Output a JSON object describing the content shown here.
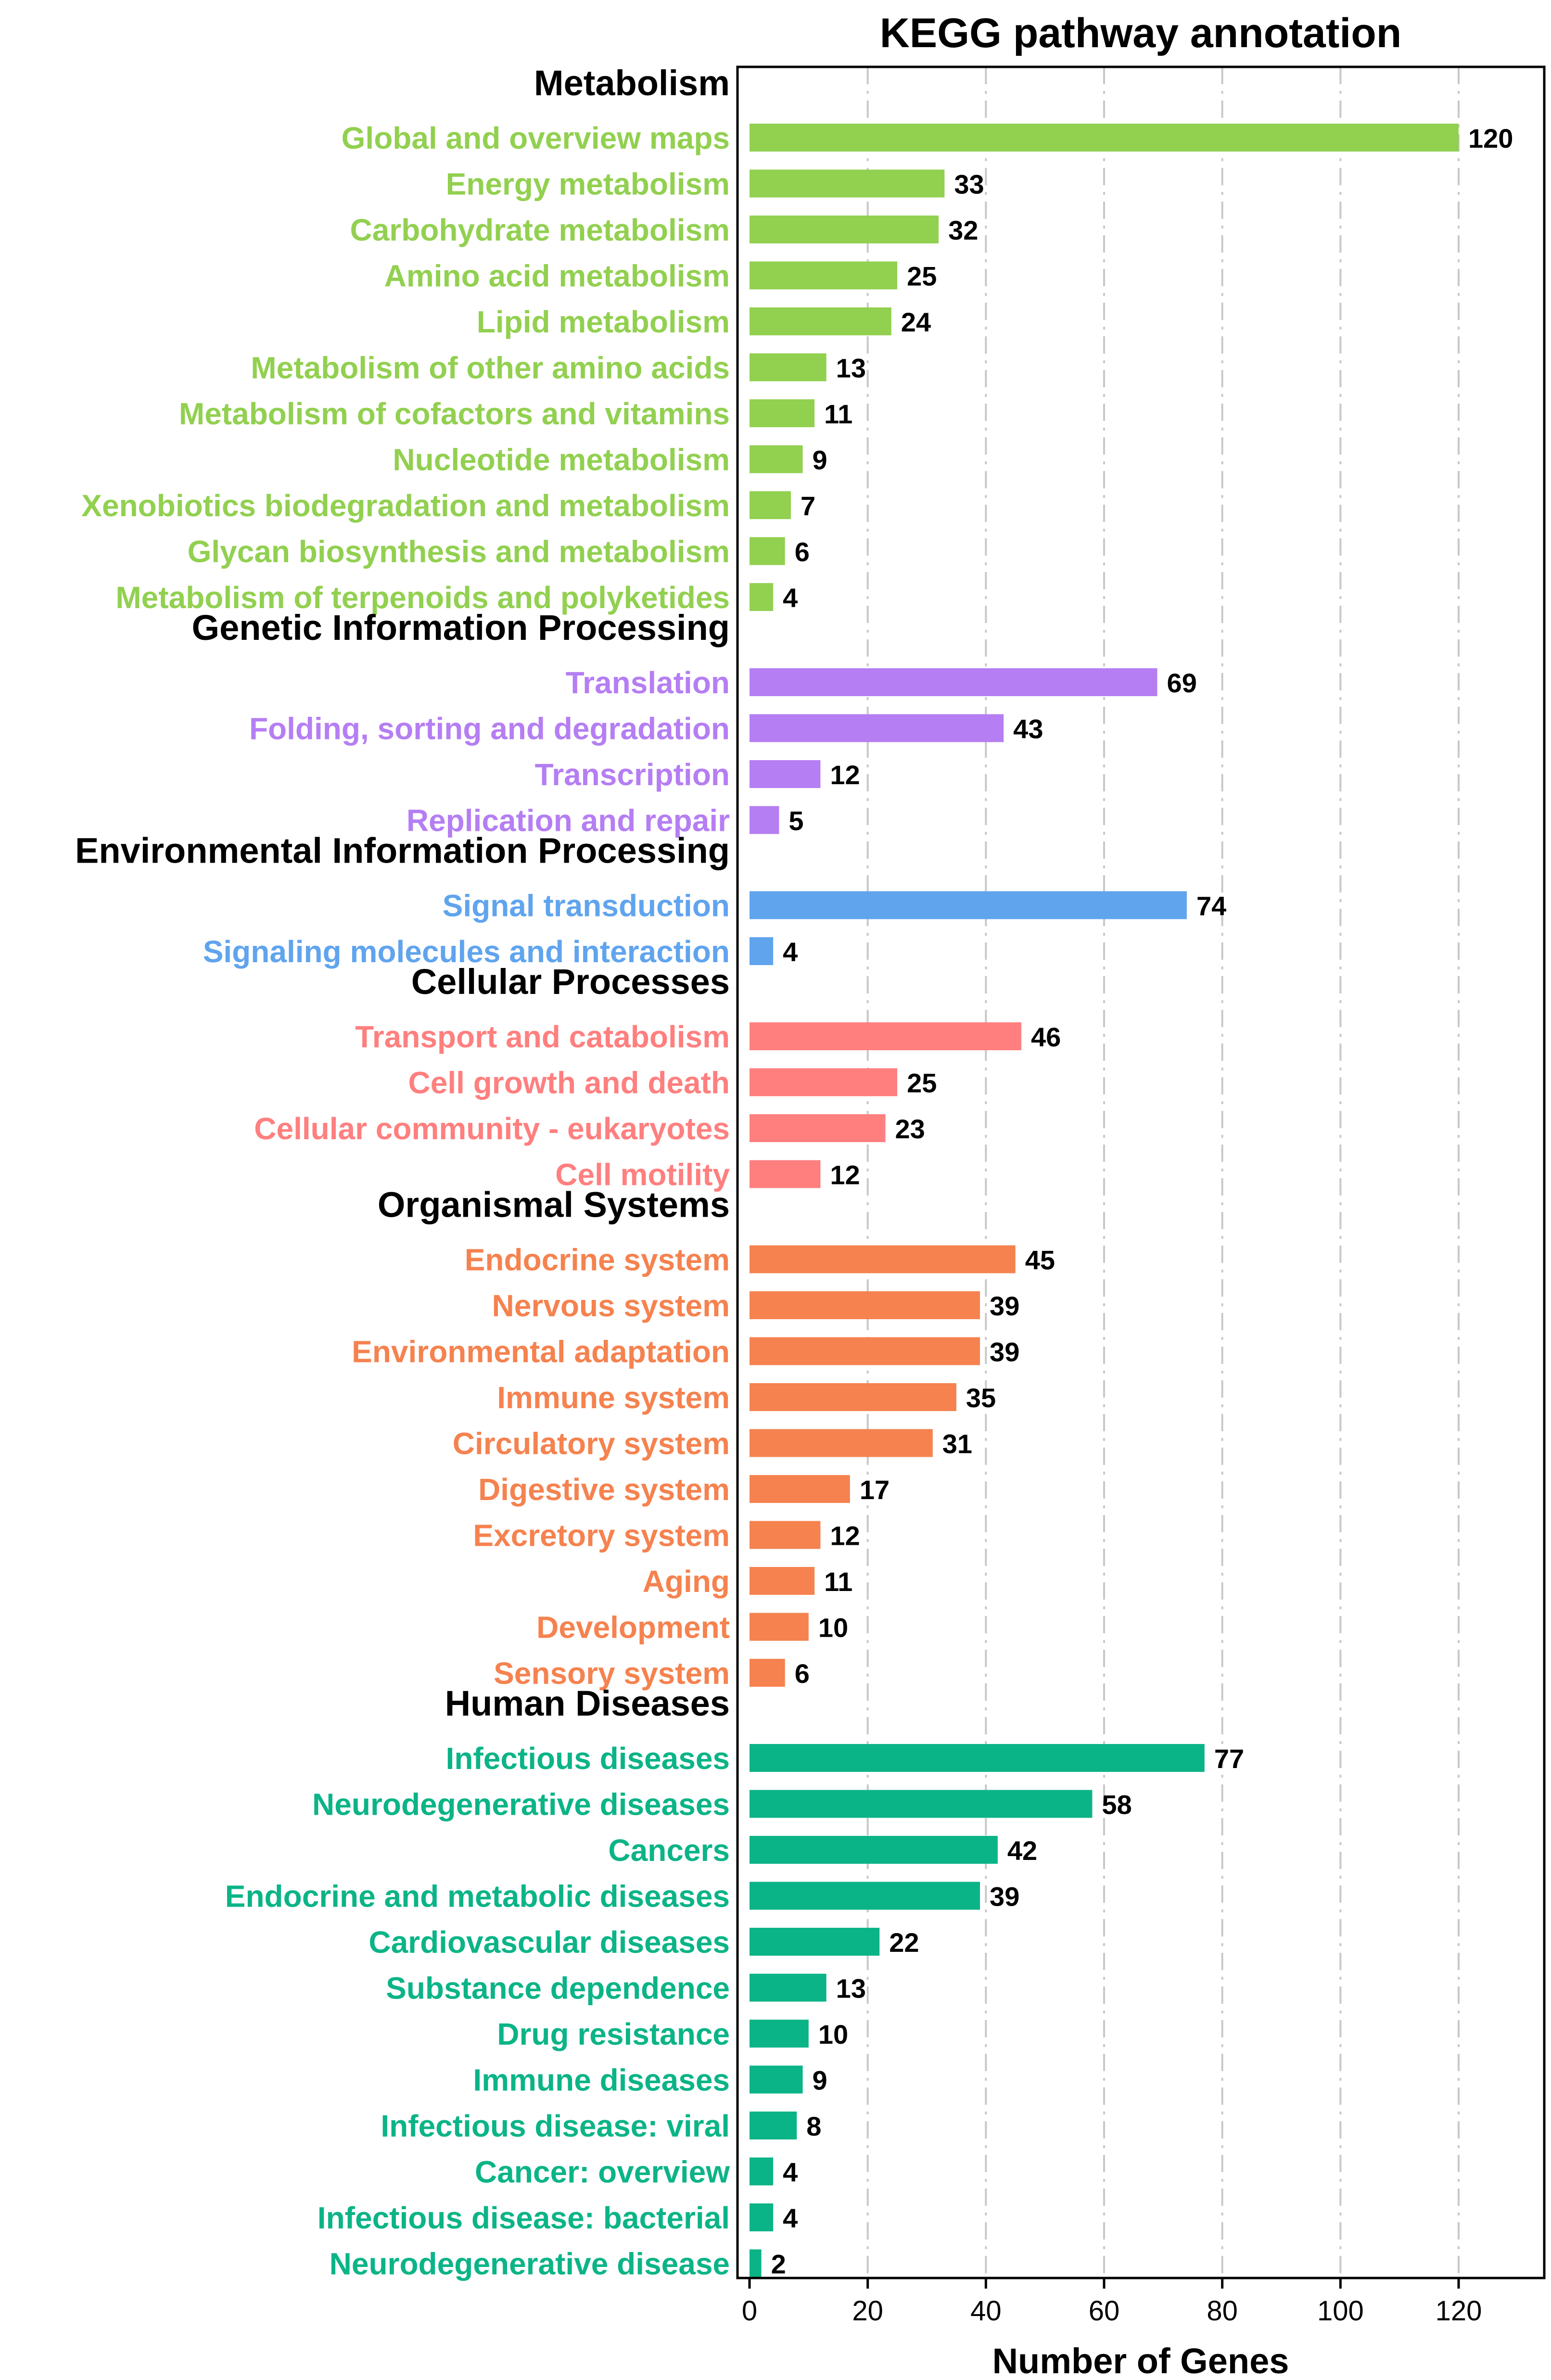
{
  "chart_data": {
    "type": "bar",
    "orientation": "horizontal",
    "title": "KEGG pathway annotation",
    "xlabel": "Number of Genes",
    "ylabel": "",
    "xlim": [
      0,
      132
    ],
    "xticks": [
      0,
      20,
      40,
      60,
      80,
      100,
      120
    ],
    "grid": "vertical dash-dot",
    "groups": [
      {
        "name": "Metabolism",
        "color": "#92D050",
        "items": [
          {
            "label": "Global and overview maps",
            "value": 120
          },
          {
            "label": "Energy metabolism",
            "value": 33
          },
          {
            "label": "Carbohydrate metabolism",
            "value": 32
          },
          {
            "label": "Amino acid metabolism",
            "value": 25
          },
          {
            "label": "Lipid metabolism",
            "value": 24
          },
          {
            "label": "Metabolism of other amino acids",
            "value": 13
          },
          {
            "label": "Metabolism of cofactors and vitamins",
            "value": 11
          },
          {
            "label": "Nucleotide metabolism",
            "value": 9
          },
          {
            "label": "Xenobiotics biodegradation and metabolism",
            "value": 7
          },
          {
            "label": "Glycan biosynthesis and metabolism",
            "value": 6
          },
          {
            "label": "Metabolism of terpenoids and polyketides",
            "value": 4
          }
        ]
      },
      {
        "name": "Genetic Information Processing",
        "color": "#B57EF3",
        "items": [
          {
            "label": "Translation",
            "value": 69
          },
          {
            "label": "Folding, sorting and degradation",
            "value": 43
          },
          {
            "label": "Transcription",
            "value": 12
          },
          {
            "label": "Replication and repair",
            "value": 5
          }
        ]
      },
      {
        "name": "Environmental Information Processing",
        "color": "#60A4EE",
        "items": [
          {
            "label": "Signal transduction",
            "value": 74
          },
          {
            "label": "Signaling molecules and interaction",
            "value": 4
          }
        ]
      },
      {
        "name": "Cellular Processes",
        "color": "#FF7F7F",
        "items": [
          {
            "label": "Transport and catabolism",
            "value": 46
          },
          {
            "label": "Cell growth and death",
            "value": 25
          },
          {
            "label": "Cellular community - eukaryotes",
            "value": 23
          },
          {
            "label": "Cell motility",
            "value": 12
          }
        ]
      },
      {
        "name": "Organismal Systems",
        "color": "#F5824F",
        "items": [
          {
            "label": "Endocrine system",
            "value": 45
          },
          {
            "label": "Nervous system",
            "value": 39
          },
          {
            "label": "Environmental adaptation",
            "value": 39
          },
          {
            "label": "Immune system",
            "value": 35
          },
          {
            "label": "Circulatory system",
            "value": 31
          },
          {
            "label": "Digestive system",
            "value": 17
          },
          {
            "label": "Excretory system",
            "value": 12
          },
          {
            "label": "Aging",
            "value": 11
          },
          {
            "label": "Development",
            "value": 10
          },
          {
            "label": "Sensory system",
            "value": 6
          }
        ]
      },
      {
        "name": "Human Diseases",
        "color": "#0BB487",
        "items": [
          {
            "label": "Infectious diseases",
            "value": 77
          },
          {
            "label": "Neurodegenerative diseases",
            "value": 58
          },
          {
            "label": "Cancers",
            "value": 42
          },
          {
            "label": "Endocrine and metabolic diseases",
            "value": 39
          },
          {
            "label": "Cardiovascular diseases",
            "value": 22
          },
          {
            "label": "Substance dependence",
            "value": 13
          },
          {
            "label": "Drug resistance",
            "value": 10
          },
          {
            "label": "Immune diseases",
            "value": 9
          },
          {
            "label": "Infectious disease: viral",
            "value": 8
          },
          {
            "label": "Cancer: overview",
            "value": 4
          },
          {
            "label": "Infectious disease: bacterial",
            "value": 4
          },
          {
            "label": "Neurodegenerative disease",
            "value": 2
          }
        ]
      }
    ]
  }
}
